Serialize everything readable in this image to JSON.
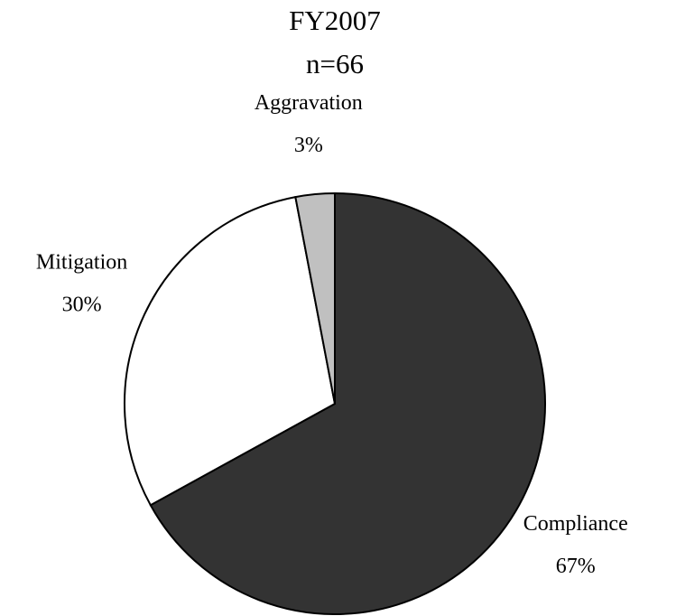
{
  "chart_data": {
    "type": "pie",
    "title": "FY2007",
    "subtitle": "n=66",
    "categories": [
      "Compliance",
      "Mitigation",
      "Aggravation"
    ],
    "values": [
      67,
      30,
      3
    ],
    "value_labels": [
      "67%",
      "30%",
      "3%"
    ],
    "colors": [
      "#333333",
      "#ffffff",
      "#c0c0c0"
    ]
  }
}
